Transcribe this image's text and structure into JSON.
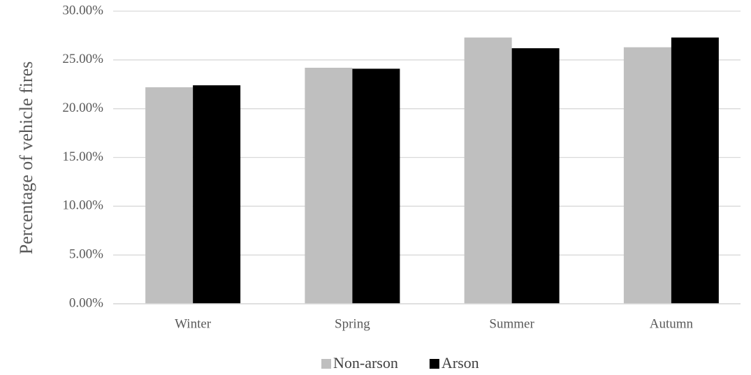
{
  "chart_data": {
    "type": "bar",
    "y_label": "Percentage of vehicle fires",
    "categories": [
      "Winter",
      "Spring",
      "Summer",
      "Autumn"
    ],
    "series": [
      {
        "name": "Non-arson",
        "color": "#bfbfbf",
        "values": [
          22.2,
          24.2,
          27.3,
          26.3
        ]
      },
      {
        "name": "Arson",
        "color": "#000000",
        "values": [
          22.4,
          24.1,
          26.2,
          27.3
        ]
      }
    ],
    "ylim": [
      0,
      30
    ],
    "yticks": [
      {
        "value": 0,
        "label": "0.00%"
      },
      {
        "value": 5,
        "label": "5.00%"
      },
      {
        "value": 10,
        "label": "10.00%"
      },
      {
        "value": 15,
        "label": "15.00%"
      },
      {
        "value": 20,
        "label": "20.00%"
      },
      {
        "value": 25,
        "label": "25.00%"
      },
      {
        "value": 30,
        "label": "30.00%"
      }
    ],
    "grid": true,
    "legend": "bottom"
  }
}
